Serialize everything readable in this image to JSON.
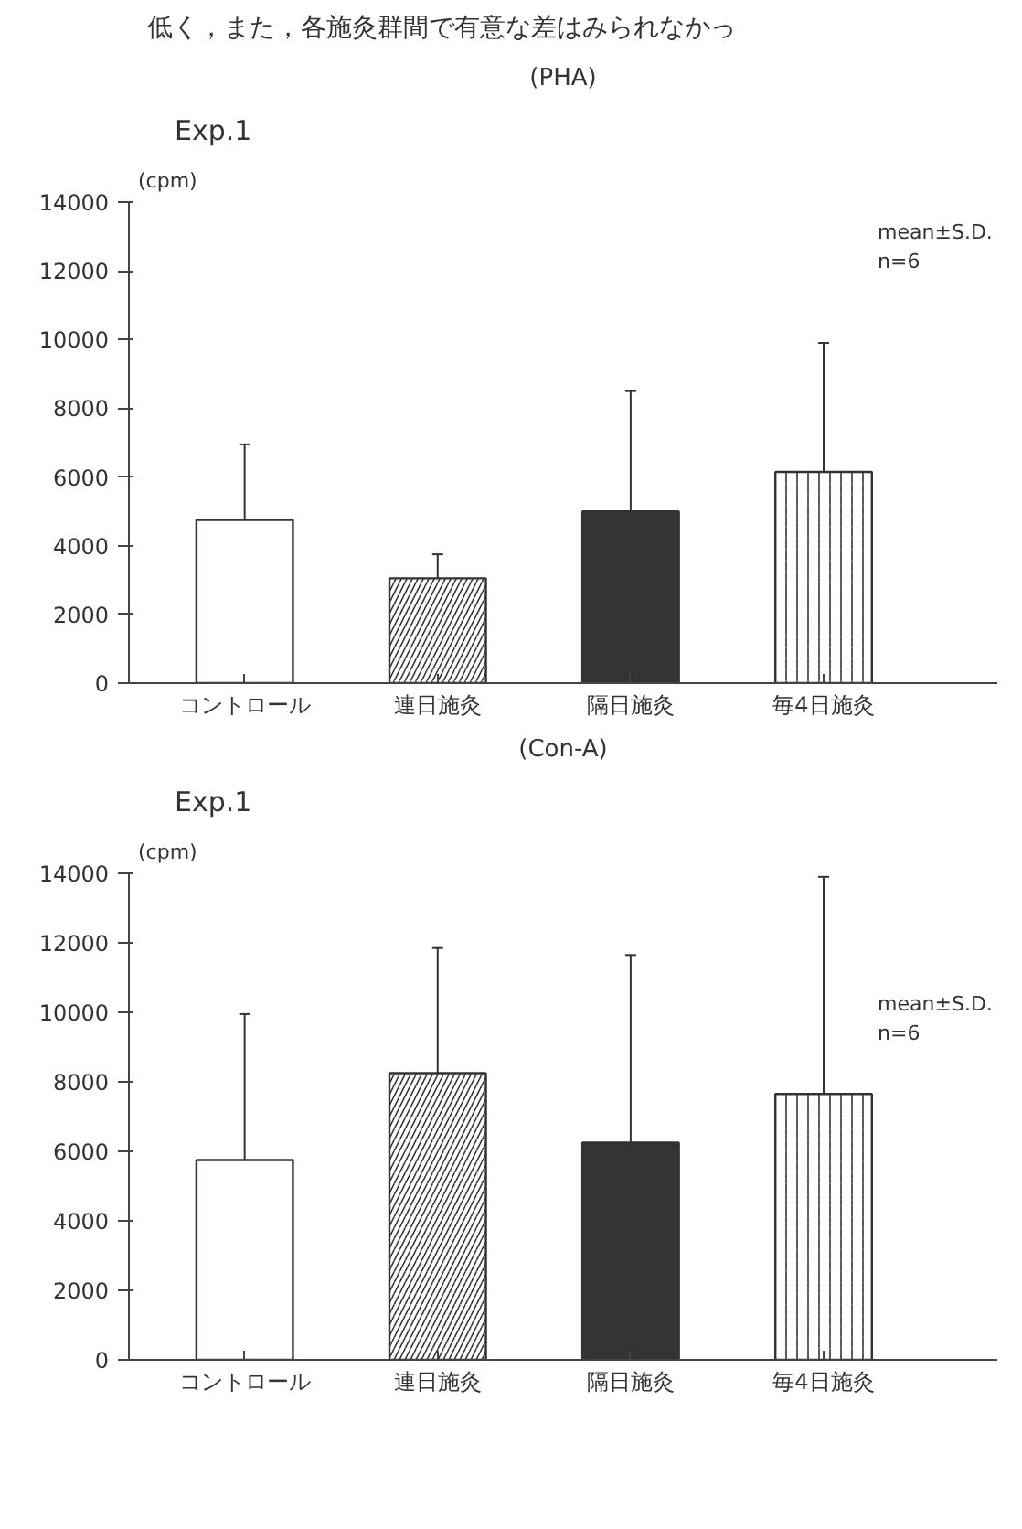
{
  "chart_data": [
    {
      "type": "bar",
      "title": "(PHA)",
      "subtitle": "Exp.1",
      "ylabel": "(cpm)",
      "categories": [
        "コントロール",
        "連日施灸",
        "隔日施灸",
        "毎4日施灸"
      ],
      "values": [
        4750,
        3050,
        5000,
        6150
      ],
      "errors": [
        [
          4750,
          6950
        ],
        [
          3050,
          3750
        ],
        [
          5000,
          8500
        ],
        [
          6150,
          9900
        ]
      ],
      "colors": [
        "#ffffff",
        "#333333",
        "#333333",
        "#333333"
      ],
      "ylim": [
        0,
        14000
      ],
      "yticks": [
        0,
        2000,
        4000,
        6000,
        8000,
        10000,
        12000,
        14000
      ],
      "grid": false,
      "annotations": [
        "低く，また，各施灸群間で有意な差はみられなかっ",
        "mean±S.D.",
        "n=6"
      ]
    },
    {
      "type": "bar",
      "title": "(Con-A)",
      "subtitle": "Exp.1",
      "ylabel": "(cpm)",
      "categories": [
        "コントロール",
        "連日施灸",
        "隔日施灸",
        "毎4日施灸"
      ],
      "values": [
        5750,
        8250,
        6250,
        7650
      ],
      "errors": [
        [
          5750,
          9950
        ],
        [
          8250,
          11850
        ],
        [
          6250,
          11650
        ],
        [
          7650,
          13900
        ]
      ],
      "colors": [
        "#ffffff",
        "#333333",
        "#333333",
        "#333333"
      ],
      "ylim": [
        0,
        14000
      ],
      "yticks": [
        0,
        2000,
        4000,
        6000,
        8000,
        10000,
        12000,
        14000
      ],
      "grid": false,
      "annotations": [
        "mean±S.D.",
        "n=6"
      ]
    }
  ]
}
